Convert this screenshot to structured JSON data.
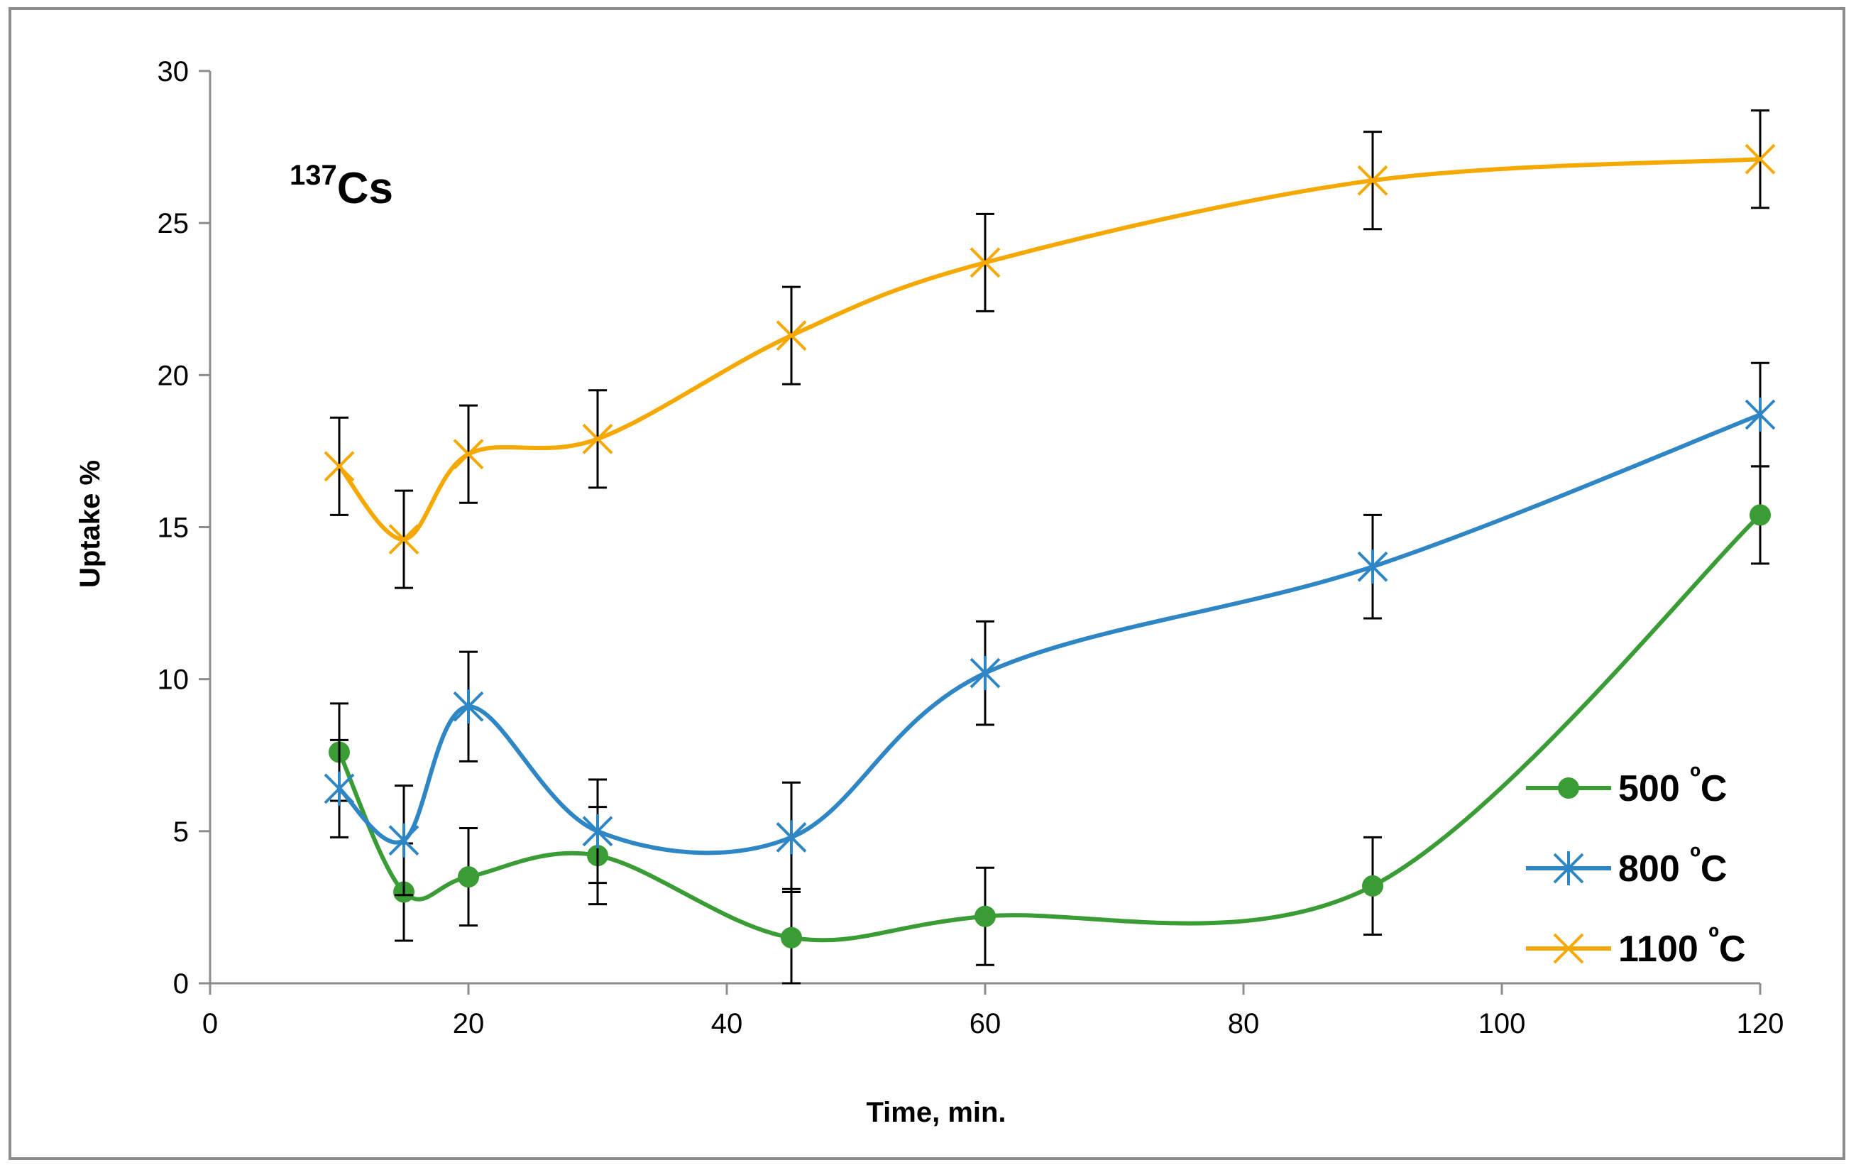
{
  "chart_data": {
    "type": "line",
    "title": "",
    "annotation": {
      "sup": "137",
      "main": "Cs"
    },
    "xlabel": "Time, min.",
    "ylabel": "Uptake %",
    "xlim": [
      0,
      120
    ],
    "ylim": [
      0,
      30
    ],
    "x_ticks": [
      0,
      20,
      40,
      60,
      80,
      100,
      120
    ],
    "y_ticks": [
      0,
      5,
      10,
      15,
      20,
      25,
      30
    ],
    "grid": false,
    "legend_position": "bottom-right",
    "smooth": true,
    "error_bars": true,
    "series": [
      {
        "name": "500 ºC",
        "label_main": "500 ",
        "label_sup": "º",
        "label_unit": "C",
        "color": "#3a9c35",
        "marker": "circle",
        "x": [
          10,
          15,
          20,
          30,
          45,
          60,
          90,
          120
        ],
        "y": [
          7.6,
          3.0,
          3.5,
          4.2,
          1.5,
          2.2,
          3.2,
          15.4
        ],
        "err": [
          1.6,
          1.6,
          1.6,
          1.6,
          1.6,
          1.6,
          1.6,
          1.6
        ]
      },
      {
        "name": "800 ºC",
        "label_main": "800 ",
        "label_sup": "º",
        "label_unit": "C",
        "color": "#2f86c4",
        "marker": "asterisk",
        "x": [
          10,
          15,
          20,
          30,
          45,
          60,
          90,
          120
        ],
        "y": [
          6.4,
          4.7,
          9.1,
          5.0,
          4.8,
          10.2,
          13.7,
          18.7
        ],
        "err": [
          1.6,
          1.8,
          1.8,
          1.7,
          1.8,
          1.7,
          1.7,
          1.7
        ]
      },
      {
        "name": "1100 ºC",
        "label_main": "1100 ",
        "label_sup": "º",
        "label_unit": "C",
        "color": "#f5a800",
        "marker": "x",
        "x": [
          10,
          15,
          20,
          30,
          45,
          60,
          90,
          120
        ],
        "y": [
          17.0,
          14.6,
          17.4,
          17.9,
          21.3,
          23.7,
          26.4,
          27.1
        ],
        "err": [
          1.6,
          1.6,
          1.6,
          1.6,
          1.6,
          1.6,
          1.6,
          1.6
        ]
      }
    ]
  }
}
